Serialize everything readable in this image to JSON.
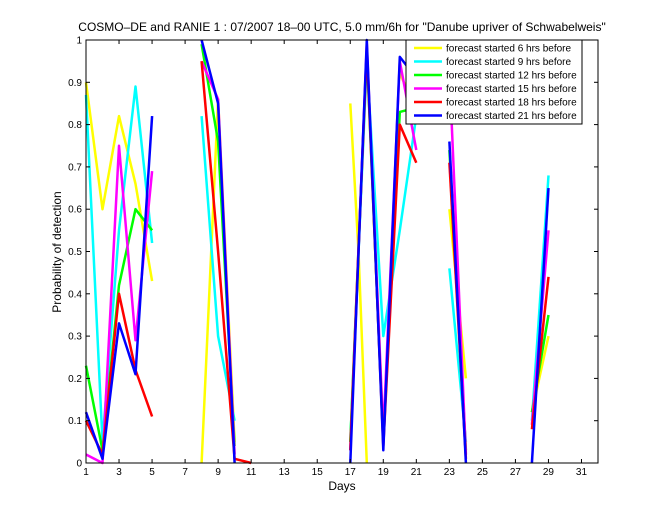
{
  "chart_data": {
    "type": "line",
    "title": "COSMO–DE and RANIE 1 : 07/2007 18–00 UTC, 5.0 mm/6h for \"Danube upriver of Schwabelweis\"",
    "xlabel": "Days",
    "ylabel": "Probability of detection",
    "xlim": [
      1,
      32
    ],
    "ylim": [
      0,
      1
    ],
    "xticks": [
      1,
      3,
      5,
      7,
      9,
      11,
      13,
      15,
      17,
      19,
      21,
      23,
      25,
      27,
      29,
      31
    ],
    "yticks": [
      0,
      0.1,
      0.2,
      0.3,
      0.4,
      0.5,
      0.6,
      0.7,
      0.8,
      0.9,
      1
    ],
    "grid": false,
    "legend": "top-right",
    "series": [
      {
        "name": "forecast started 6 hrs before",
        "color": "#ffff00",
        "segments": [
          [
            [
              1,
              0.9
            ],
            [
              2,
              0.6
            ],
            [
              3,
              0.82
            ],
            [
              4,
              0.66
            ],
            [
              5,
              0.43
            ]
          ],
          [
            [
              8,
              0
            ],
            [
              9,
              0.86
            ],
            [
              10,
              0.05
            ]
          ],
          [
            [
              17,
              0.85
            ],
            [
              17.5,
              0.5
            ],
            [
              18,
              0
            ]
          ],
          [
            [
              20,
              0.92
            ],
            [
              21,
              0.84
            ]
          ],
          [
            [
              23,
              0.6
            ],
            [
              24,
              0.2
            ]
          ],
          [
            [
              28,
              0.12
            ],
            [
              29,
              0.3
            ]
          ]
        ]
      },
      {
        "name": "forecast started 9 hrs before",
        "color": "#00ffff",
        "segments": [
          [
            [
              1,
              0.87
            ],
            [
              2,
              0.05
            ],
            [
              3,
              0.55
            ],
            [
              4,
              0.89
            ],
            [
              5,
              0.52
            ]
          ],
          [
            [
              8,
              0.82
            ],
            [
              9,
              0.3
            ],
            [
              10,
              0.1
            ]
          ],
          [
            [
              17,
              0.05
            ],
            [
              18,
              0.95
            ],
            [
              19,
              0.3
            ],
            [
              20,
              0.55
            ],
            [
              21,
              0.82
            ]
          ],
          [
            [
              23,
              0.46
            ],
            [
              24,
              0.05
            ]
          ],
          [
            [
              28,
              0.1
            ],
            [
              29,
              0.68
            ]
          ]
        ]
      },
      {
        "name": "forecast started 12 hrs before",
        "color": "#00ff00",
        "segments": [
          [
            [
              1,
              0.23
            ],
            [
              2,
              0.03
            ],
            [
              3,
              0.42
            ],
            [
              4,
              0.6
            ],
            [
              5,
              0.55
            ]
          ],
          [
            [
              8,
              0.99
            ],
            [
              9,
              0.76
            ],
            [
              10,
              0.04
            ]
          ],
          [
            [
              17,
              0.05
            ],
            [
              18,
              0.97
            ],
            [
              19,
              0.05
            ],
            [
              20,
              0.83
            ],
            [
              21,
              0.84
            ]
          ],
          [
            [
              23,
              0.74
            ],
            [
              24,
              0.03
            ]
          ],
          [
            [
              28,
              0.12
            ],
            [
              29,
              0.35
            ]
          ]
        ]
      },
      {
        "name": "forecast started 15 hrs before",
        "color": "#ff00ff",
        "segments": [
          [
            [
              1,
              0.02
            ],
            [
              2,
              0.0
            ],
            [
              3,
              0.75
            ],
            [
              4,
              0.29
            ],
            [
              5,
              0.69
            ]
          ],
          [
            [
              8,
              0.95
            ],
            [
              9,
              0.86
            ],
            [
              10,
              0.02
            ]
          ],
          [
            [
              17,
              0.03
            ],
            [
              18,
              0.99
            ],
            [
              19,
              0.07
            ],
            [
              20,
              0.95
            ],
            [
              21,
              0.74
            ]
          ],
          [
            [
              23,
              0.93
            ],
            [
              24,
              0.02
            ]
          ],
          [
            [
              28,
              0.09
            ],
            [
              29,
              0.55
            ]
          ]
        ]
      },
      {
        "name": "forecast started 18 hrs before",
        "color": "#ff0000",
        "segments": [
          [
            [
              1,
              0.1
            ],
            [
              2,
              0.02
            ],
            [
              3,
              0.4
            ],
            [
              4,
              0.22
            ],
            [
              5,
              0.11
            ]
          ],
          [
            [
              8,
              0.95
            ],
            [
              9,
              0.5
            ],
            [
              10,
              0.01
            ],
            [
              11,
              0.0
            ]
          ],
          [
            [
              17,
              0.03
            ],
            [
              18,
              0.98
            ],
            [
              19,
              0.04
            ],
            [
              20,
              0.8
            ],
            [
              21,
              0.71
            ]
          ],
          [
            [
              23,
              0.71
            ],
            [
              24,
              0.01
            ]
          ],
          [
            [
              28,
              0.08
            ],
            [
              29,
              0.44
            ]
          ]
        ]
      },
      {
        "name": "forecast started 21 hrs before",
        "color": "#0000ff",
        "segments": [
          [
            [
              1,
              0.12
            ],
            [
              2,
              0.01
            ],
            [
              3,
              0.33
            ],
            [
              4,
              0.21
            ],
            [
              5,
              0.82
            ]
          ],
          [
            [
              8,
              1.0
            ],
            [
              9,
              0.85
            ],
            [
              10,
              0.0
            ]
          ],
          [
            [
              17,
              0.0
            ],
            [
              18,
              1.0
            ],
            [
              19,
              0.03
            ],
            [
              20,
              0.96
            ],
            [
              21,
              0.91
            ]
          ],
          [
            [
              23,
              0.76
            ],
            [
              24,
              0.0
            ]
          ],
          [
            [
              28,
              0.0
            ],
            [
              29,
              0.65
            ]
          ]
        ]
      }
    ]
  }
}
